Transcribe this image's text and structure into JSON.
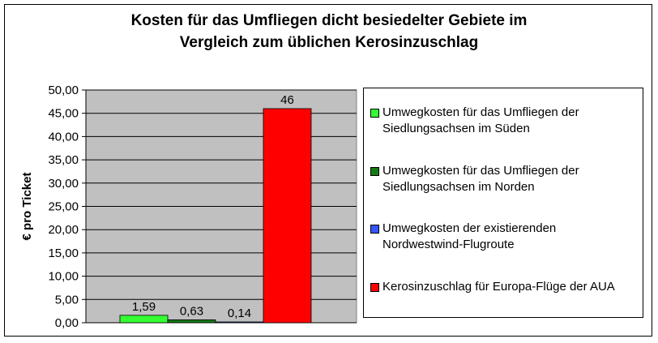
{
  "chart_data": {
    "type": "bar",
    "title_lines": [
      "Kosten für das Umfliegen dicht besiedelter Gebiete im",
      "Vergleich zum üblichen Kerosinzuschlag"
    ],
    "ylabel": "€ pro Ticket",
    "xlabel": "",
    "ylim": [
      0,
      50
    ],
    "y_tick_step": 5,
    "y_tick_labels": [
      "0,00",
      "5,00",
      "10,00",
      "15,00",
      "20,00",
      "25,00",
      "30,00",
      "35,00",
      "40,00",
      "45,00",
      "50,00"
    ],
    "plot_background": "#c0c0c0",
    "grid": true,
    "legend_position": "right",
    "series": [
      {
        "name": "Umwegkosten für das Umfliegen der Siedlungsachsen im Süden",
        "value": 1.59,
        "label": "1,59",
        "color": "#33ff33"
      },
      {
        "name": "Umwegkosten für das Umfliegen der Siedlungsachsen im Norden",
        "value": 0.63,
        "label": "0,63",
        "color": "#157a15"
      },
      {
        "name": "Umwegkosten der existierenden Nordwestwind-Flugroute",
        "value": 0.14,
        "label": "0,14",
        "color": "#3355ff"
      },
      {
        "name": "Kerosinzuschlag für Europa-Flüge der AUA",
        "value": 46,
        "label": "46",
        "color": "#ff0000"
      }
    ]
  }
}
